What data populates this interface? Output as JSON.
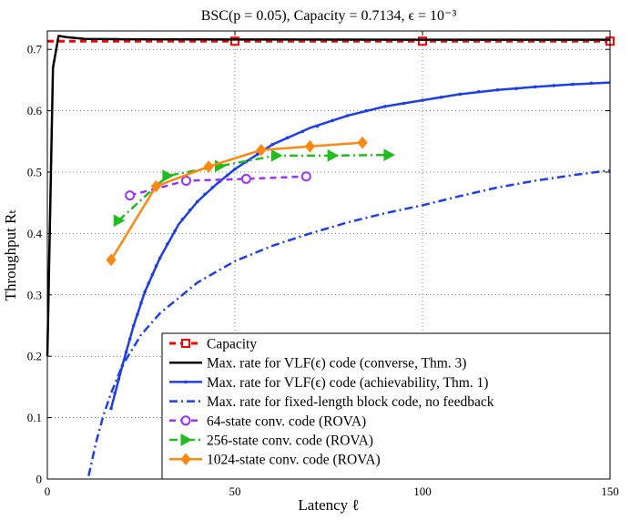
{
  "chart_data": {
    "type": "line",
    "title": "BSC(p = 0.05), Capacity = 0.7134, ϵ = 10⁻³",
    "xlabel": "Latency ℓ",
    "ylabel": "Throughput Rₜ",
    "xlim": [
      0,
      150
    ],
    "ylim": [
      0,
      0.73
    ],
    "grid": true,
    "x_ticks": [
      0,
      50,
      100,
      150
    ],
    "x_tick_labels": [
      "0",
      "50",
      "100",
      "150"
    ],
    "y_ticks": [
      0,
      0.1,
      0.2,
      0.3,
      0.4,
      0.5,
      0.6,
      0.7
    ],
    "y_tick_labels": [
      "0",
      "0.1",
      "0.2",
      "0.3",
      "0.4",
      "0.5",
      "0.6",
      "0.7"
    ],
    "legend_position": "bottom-right",
    "series": [
      {
        "name": "Capacity",
        "color": "#ff0000",
        "dash": "dashed",
        "marker": "square",
        "line_x": [
          0,
          150
        ],
        "line_y": [
          0.7134,
          0.7134
        ],
        "marker_x": [
          50,
          100,
          150
        ],
        "marker_y": [
          0.7134,
          0.7134,
          0.7134
        ]
      },
      {
        "name": "Max. rate for VLF(ϵ) code (converse, Thm. 3)",
        "color": "#000000",
        "dash": "solid",
        "marker": "none",
        "line_x": [
          0,
          1.5,
          3,
          5,
          10,
          20,
          40,
          60,
          100,
          150
        ],
        "line_y": [
          0.2,
          0.67,
          0.722,
          0.72,
          0.717,
          0.7165,
          0.7162,
          0.716,
          0.7158,
          0.7157
        ],
        "marker_x": [],
        "marker_y": []
      },
      {
        "name": "Max. rate for VLF(ϵ) code (achievability, Thm. 1)",
        "color": "#1f3fe6",
        "dash": "solid",
        "marker": "dot",
        "line_x": [
          17,
          20,
          23,
          26,
          30,
          35,
          40,
          45,
          50,
          55,
          60,
          70,
          80,
          90,
          100,
          110,
          120,
          130,
          140,
          150
        ],
        "line_y": [
          0.115,
          0.185,
          0.25,
          0.305,
          0.36,
          0.415,
          0.452,
          0.48,
          0.505,
          0.525,
          0.545,
          0.572,
          0.592,
          0.607,
          0.617,
          0.627,
          0.634,
          0.639,
          0.643,
          0.646
        ],
        "marker_x": [
          17,
          18,
          19,
          20,
          21,
          22,
          23,
          24,
          25,
          26,
          27,
          28,
          29,
          30,
          32,
          34,
          36,
          38,
          40,
          42,
          44,
          46,
          48,
          50,
          53,
          56,
          60,
          64,
          68,
          72,
          76,
          80,
          85,
          90,
          95,
          100,
          105,
          110,
          115,
          120,
          125,
          130,
          135,
          140,
          145
        ],
        "marker_y": [
          0.115,
          0.14,
          0.163,
          0.185,
          0.207,
          0.228,
          0.25,
          0.268,
          0.287,
          0.305,
          0.319,
          0.333,
          0.347,
          0.36,
          0.383,
          0.404,
          0.423,
          0.438,
          0.452,
          0.464,
          0.475,
          0.485,
          0.495,
          0.505,
          0.517,
          0.529,
          0.545,
          0.556,
          0.566,
          0.575,
          0.584,
          0.592,
          0.6,
          0.607,
          0.612,
          0.617,
          0.622,
          0.627,
          0.631,
          0.634,
          0.636,
          0.639,
          0.641,
          0.643,
          0.645
        ]
      },
      {
        "name": "Max. rate for fixed-length block code, no feedback",
        "color": "#1f3fe6",
        "dash": "dashdot",
        "marker": "none",
        "line_x": [
          11,
          13,
          15,
          17,
          20,
          25,
          30,
          40,
          50,
          60,
          70,
          80,
          90,
          100,
          110,
          120,
          130,
          140,
          150
        ],
        "line_y": [
          0.005,
          0.06,
          0.105,
          0.14,
          0.185,
          0.235,
          0.27,
          0.32,
          0.355,
          0.38,
          0.4,
          0.418,
          0.433,
          0.446,
          0.461,
          0.475,
          0.486,
          0.495,
          0.503
        ],
        "marker_x": [],
        "marker_y": []
      },
      {
        "name": "64-state conv. code (ROVA)",
        "color": "#9933ff",
        "dash": "dashed",
        "marker": "circle",
        "line_x": [
          22,
          37,
          53,
          69
        ],
        "line_y": [
          0.462,
          0.486,
          0.489,
          0.493
        ],
        "marker_x": [
          22,
          37,
          53,
          69
        ],
        "marker_y": [
          0.462,
          0.486,
          0.489,
          0.493
        ]
      },
      {
        "name": "256-state conv. code (ROVA)",
        "color": "#22bb22",
        "dash": "dashdot",
        "marker": "triangle-right",
        "line_x": [
          19,
          32,
          46,
          61,
          76,
          91
        ],
        "line_y": [
          0.421,
          0.494,
          0.51,
          0.527,
          0.527,
          0.528
        ],
        "marker_x": [
          19,
          32,
          46,
          61,
          76,
          91
        ],
        "marker_y": [
          0.421,
          0.494,
          0.51,
          0.527,
          0.527,
          0.528
        ]
      },
      {
        "name": "1024-state conv. code (ROVA)",
        "color": "#ff8811",
        "dash": "solid",
        "marker": "diamond",
        "line_x": [
          17,
          29,
          43,
          57,
          70,
          84
        ],
        "line_y": [
          0.357,
          0.477,
          0.509,
          0.536,
          0.542,
          0.548
        ],
        "marker_x": [
          17,
          29,
          43,
          57,
          70,
          84
        ],
        "marker_y": [
          0.357,
          0.477,
          0.509,
          0.536,
          0.542,
          0.548
        ]
      }
    ]
  }
}
